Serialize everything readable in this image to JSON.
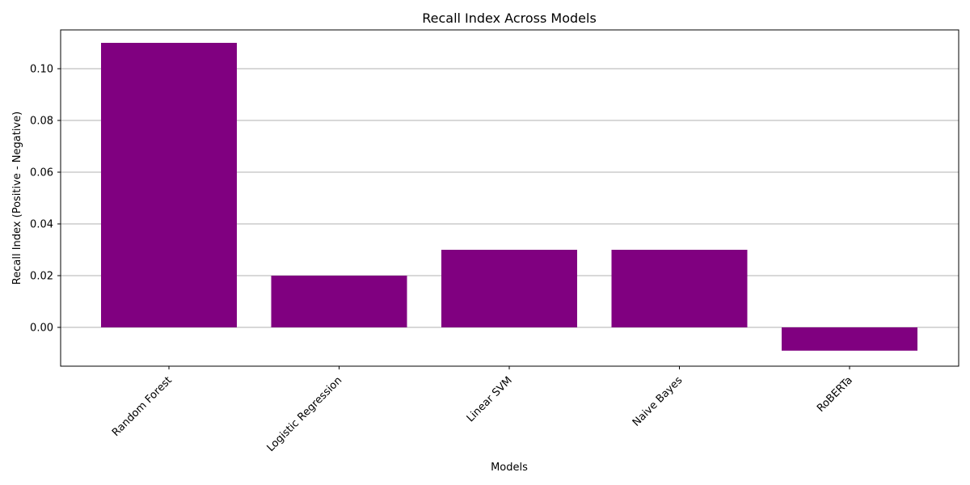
{
  "chart_data": {
    "type": "bar",
    "title": "Recall Index Across Models",
    "xlabel": "Models",
    "ylabel": "Recall Index (Positive - Negative)",
    "categories": [
      "Random Forest",
      "Logistic Regression",
      "Linear SVM",
      "Naive Bayes",
      "RoBERTa"
    ],
    "values": [
      0.11,
      0.02,
      0.03,
      0.03,
      -0.009
    ],
    "ylim": [
      -0.015,
      0.115
    ],
    "yticks": [
      "0.00",
      "0.02",
      "0.04",
      "0.06",
      "0.08",
      "0.10"
    ],
    "ytick_values": [
      0,
      0.02,
      0.04,
      0.06,
      0.08,
      0.1
    ],
    "grid": "y",
    "bar_color": "#800080",
    "grid_color": "#b0b0b0"
  }
}
